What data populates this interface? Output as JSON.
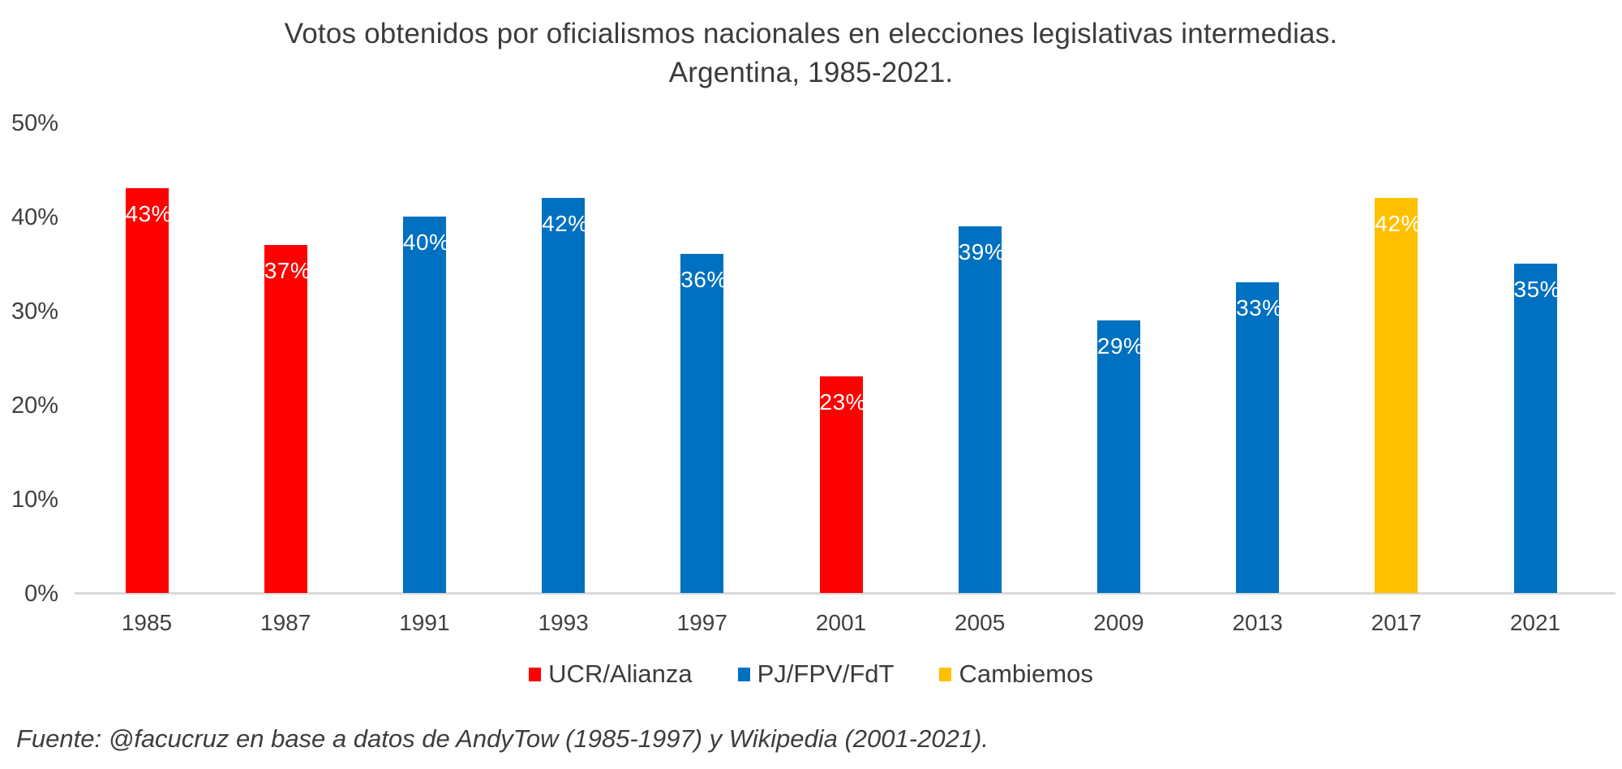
{
  "page": {
    "background": "#FFFFFF"
  },
  "title": {
    "line1": "Votos obtenidos por oficialismos nacionales en elecciones legislativas intermedias.",
    "line2": "Argentina, 1985-2021."
  },
  "chart_data": {
    "type": "bar",
    "title": "Votos obtenidos por oficialismos nacionales en elecciones legislativas intermedias. Argentina, 1985-2021.",
    "categories": [
      "1985",
      "1987",
      "1991",
      "1993",
      "1997",
      "2001",
      "2005",
      "2009",
      "2013",
      "2017",
      "2021"
    ],
    "values": [
      43,
      37,
      40,
      42,
      36,
      23,
      39,
      29,
      33,
      42,
      35
    ],
    "bar_labels": [
      "43%",
      "37%",
      "40%",
      "42%",
      "36%",
      "23%",
      "39%",
      "29%",
      "33%",
      "42%",
      "35%"
    ],
    "series_keys": [
      "UCR/Alianza",
      "UCR/Alianza",
      "PJ/FPV/FdT",
      "PJ/FPV/FdT",
      "PJ/FPV/FdT",
      "UCR/Alianza",
      "PJ/FPV/FdT",
      "PJ/FPV/FdT",
      "PJ/FPV/FdT",
      "Cambiemos",
      "PJ/FPV/FdT"
    ],
    "xlabel": "",
    "ylabel": "",
    "ylim": [
      0,
      50
    ],
    "yticks": [
      "0%",
      "10%",
      "20%",
      "30%",
      "40%",
      "50%"
    ],
    "grid": false,
    "value_label_color": "#FFFFFF",
    "axis_line_color": "#D9D9D9",
    "text_color": "#404040",
    "legend": {
      "position": "bottom",
      "entries": [
        {
          "label": "UCR/Alianza",
          "color": "#FF0000"
        },
        {
          "label": "PJ/FPV/FdT",
          "color": "#0070C0"
        },
        {
          "label": "Cambiemos",
          "color": "#FFC000"
        }
      ]
    }
  },
  "footer": {
    "source_text": "Fuente: @facucruz en base a datos de AndyTow (1985-1997) y Wikipedia (2001-2021)."
  }
}
